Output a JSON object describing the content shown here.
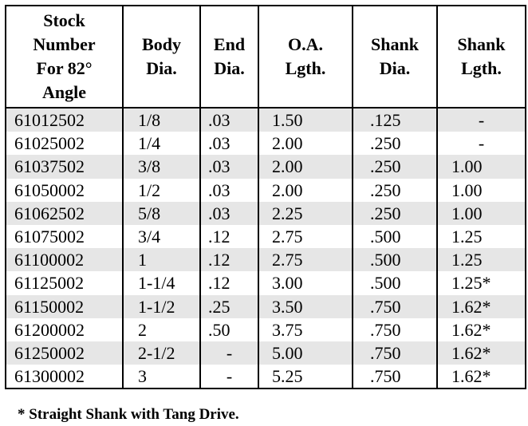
{
  "headers": [
    {
      "key": "stock",
      "lines": [
        "Stock",
        "Number",
        "For 82°",
        "Angle"
      ]
    },
    {
      "key": "body",
      "lines": [
        "Body",
        "Dia."
      ]
    },
    {
      "key": "end",
      "lines": [
        "End",
        "Dia."
      ]
    },
    {
      "key": "oa",
      "lines": [
        "O.A.",
        "Lgth."
      ]
    },
    {
      "key": "shank_dia",
      "lines": [
        "Shank",
        "Dia."
      ]
    },
    {
      "key": "shank_lgth",
      "lines": [
        "Shank",
        "Lgth."
      ]
    }
  ],
  "rows": [
    [
      "61012502",
      "1/8",
      ".03",
      "1.50",
      ".125",
      "-"
    ],
    [
      "61025002",
      "1/4",
      ".03",
      "2.00",
      ".250",
      "-"
    ],
    [
      "61037502",
      "3/8",
      ".03",
      "2.00",
      ".250",
      "1.00"
    ],
    [
      "61050002",
      "1/2",
      ".03",
      "2.00",
      ".250",
      "1.00"
    ],
    [
      "61062502",
      "5/8",
      ".03",
      "2.25",
      ".250",
      "1.00"
    ],
    [
      "61075002",
      "3/4",
      ".12",
      "2.75",
      ".500",
      "1.25"
    ],
    [
      "61100002",
      "1",
      ".12",
      "2.75",
      ".500",
      "1.25"
    ],
    [
      "61125002",
      "1-1/4",
      ".12",
      "3.00",
      ".500",
      "1.25*"
    ],
    [
      "61150002",
      "1-1/2",
      ".25",
      "3.50",
      ".750",
      "1.62*"
    ],
    [
      "61200002",
      "2",
      ".50",
      "3.75",
      ".750",
      "1.62*"
    ],
    [
      "61250002",
      "2-1/2",
      "-",
      "5.00",
      ".750",
      "1.62*"
    ],
    [
      "61300002",
      "3",
      "-",
      "5.25",
      ".750",
      "1.62*"
    ]
  ],
  "footnote": "* Straight Shank with Tang Drive.",
  "colors": {
    "shaded_row": "#e6e6e6",
    "border": "#000000"
  }
}
